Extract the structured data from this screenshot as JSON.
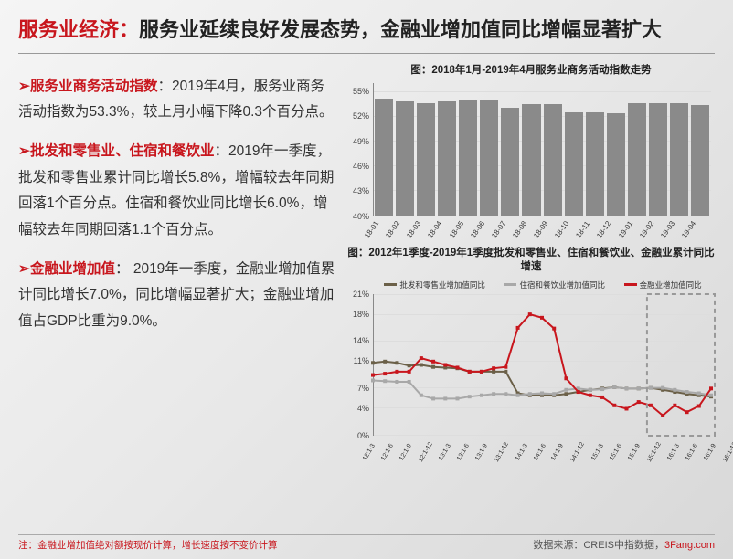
{
  "title": {
    "red_prefix": "服务业经济：",
    "black": "服务业延续良好发展态势，金融业增加值同比增幅显著扩大"
  },
  "bullets": [
    {
      "head": "服务业商务活动指数",
      "body": "：2019年4月，服务业商务活动指数为53.3%，较上月小幅下降0.3个百分点。"
    },
    {
      "head": "批发和零售业、住宿和餐饮业",
      "body": "：2019年一季度，批发和零售业累计同比增长5.8%，增幅较去年同期回落1个百分点。住宿和餐饮业同比增长6.0%，增幅较去年同期回落1.1个百分点。"
    },
    {
      "head": "金融业增加值",
      "body": "： 2019年一季度，金融业增加值累计同比增长7.0%，同比增幅显著扩大；金融业增加值占GDP比重为9.0%。"
    }
  ],
  "bar_chart": {
    "title": "图：2018年1月-2019年4月服务业商务活动指数走势",
    "ylim": [
      40,
      56
    ],
    "yticks": [
      40,
      43,
      46,
      49,
      52,
      55
    ],
    "categories": [
      "18-01",
      "18-02",
      "18-03",
      "18-04",
      "18-05",
      "18-06",
      "18-07",
      "18-08",
      "18-09",
      "18-10",
      "18-11",
      "18-12",
      "19-01",
      "19-02",
      "19-03",
      "19-04"
    ],
    "values": [
      54.1,
      53.8,
      53.6,
      53.8,
      54.0,
      54.0,
      53.0,
      53.4,
      53.4,
      52.5,
      52.4,
      52.3,
      53.6,
      53.5,
      53.6,
      53.3
    ],
    "bar_color": "#8a8a8a",
    "grid_color": "#dddddd"
  },
  "line_chart": {
    "title": "图：2012年1季度-2019年1季度批发和零售业、住宿和餐饮业、金融业累计同比增速",
    "ylim": [
      0,
      21
    ],
    "yticks": [
      0,
      4,
      7,
      11,
      14,
      18,
      21
    ],
    "categories": [
      "12:1-3",
      "12:1-6",
      "12:1-9",
      "12:1-12",
      "13:1-3",
      "13:1-6",
      "13:1-9",
      "13:1-12",
      "14:1-3",
      "14:1-6",
      "14:1-9",
      "14:1-12",
      "15:1-3",
      "15:1-6",
      "15:1-9",
      "15:1-12",
      "16:1-3",
      "16:1-6",
      "16:1-9",
      "16:1-12",
      "17:1-3",
      "17:1-6",
      "17:1-9",
      "17:1-12",
      "18:1-3",
      "18:1-6",
      "18:1-9",
      "18:1-12",
      "19:1-3"
    ],
    "series": [
      {
        "name": "批发和零售业增加值同比",
        "color": "#6b6048",
        "values": [
          10.8,
          11.0,
          10.8,
          10.4,
          10.5,
          10.2,
          10.1,
          10.0,
          9.5,
          9.5,
          9.5,
          9.5,
          6.3,
          6.0,
          6.0,
          6.0,
          6.2,
          6.5,
          6.8,
          7.0,
          7.2,
          7.0,
          7.0,
          7.1,
          6.8,
          6.5,
          6.2,
          6.0,
          5.8
        ]
      },
      {
        "name": "住宿和餐饮业增加值同比",
        "color": "#a8a8a8",
        "values": [
          8.2,
          8.1,
          8.0,
          8.0,
          6.0,
          5.5,
          5.5,
          5.5,
          5.8,
          6.0,
          6.2,
          6.2,
          6.0,
          6.2,
          6.3,
          6.2,
          6.8,
          7.0,
          6.8,
          6.9,
          7.2,
          7.0,
          7.0,
          7.1,
          7.1,
          6.8,
          6.5,
          6.3,
          6.0
        ]
      },
      {
        "name": "金融业增加值同比",
        "color": "#c8161d",
        "values": [
          9.0,
          9.2,
          9.5,
          9.5,
          11.5,
          11.0,
          10.5,
          10.1,
          9.5,
          9.5,
          10.0,
          10.2,
          16.0,
          18.0,
          17.5,
          15.9,
          8.5,
          6.5,
          6.0,
          5.7,
          4.5,
          4.0,
          5.0,
          4.5,
          3.0,
          4.5,
          3.5,
          4.4,
          7.0
        ]
      }
    ],
    "highlight_range_idx": [
      23,
      28
    ]
  },
  "footnote": "注：金融业增加值绝对额按现价计算，增长速度按不变价计算",
  "source_prefix": "数据来源：CREIS中指数据，",
  "source_brand": "3Fang.com"
}
